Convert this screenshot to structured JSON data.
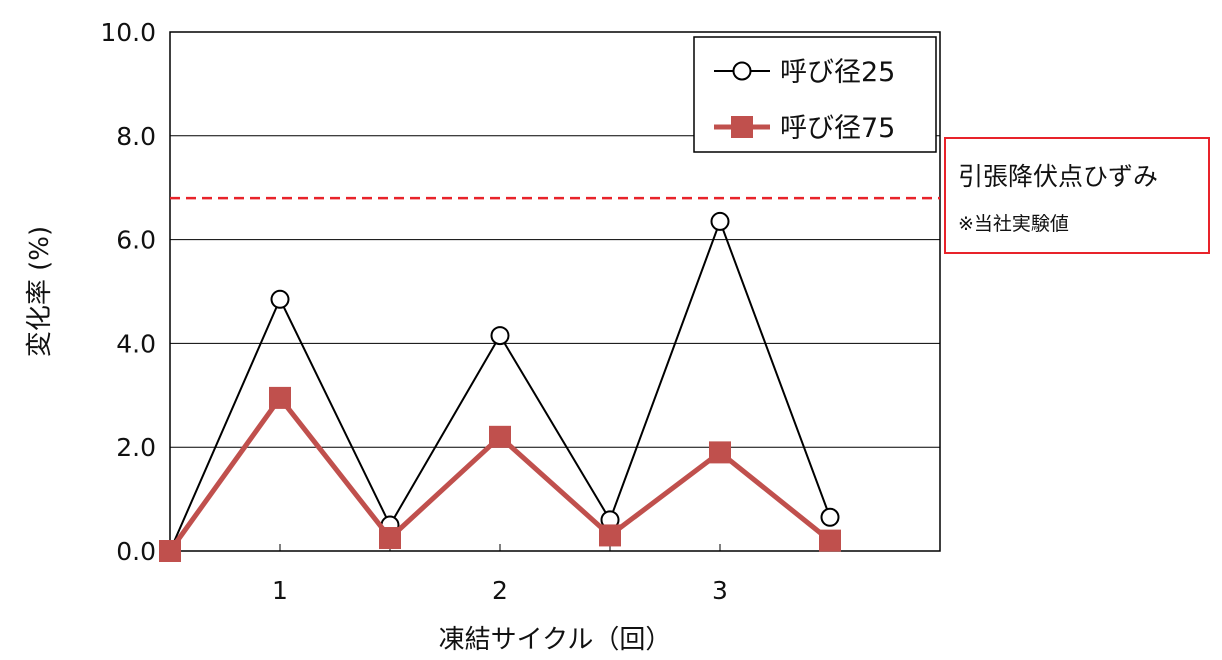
{
  "chart_data": {
    "type": "line",
    "xlabel": "凍結サイクル（回）",
    "ylabel": "変化率 (%)",
    "ylim": [
      0,
      10
    ],
    "xlim": [
      0,
      3.5
    ],
    "yticks": [
      "0.0",
      "2.0",
      "4.0",
      "6.0",
      "8.0",
      "10.0"
    ],
    "xticks": [
      {
        "x": 0.5,
        "label": "1"
      },
      {
        "x": 1.5,
        "label": "2"
      },
      {
        "x": 2.5,
        "label": "3"
      }
    ],
    "grid": true,
    "legend_position": "top-right",
    "series": [
      {
        "name": "呼び径25",
        "color": "#000000",
        "marker": "open-circle",
        "x": [
          0,
          0.5,
          1,
          1.5,
          2,
          2.5,
          3
        ],
        "values": [
          0.0,
          4.85,
          0.5,
          4.15,
          0.6,
          6.35,
          0.65
        ]
      },
      {
        "name": "呼び径75",
        "color": "#c0504d",
        "marker": "filled-square",
        "x": [
          0,
          0.5,
          1,
          1.5,
          2,
          2.5,
          3
        ],
        "values": [
          0.0,
          2.95,
          0.25,
          2.2,
          0.3,
          1.9,
          0.2
        ]
      }
    ],
    "reference_line": {
      "value": 6.8,
      "color": "#e8232a",
      "style": "dashed",
      "label": "引張降伏点ひずみ",
      "note": "※当社実験値"
    }
  }
}
